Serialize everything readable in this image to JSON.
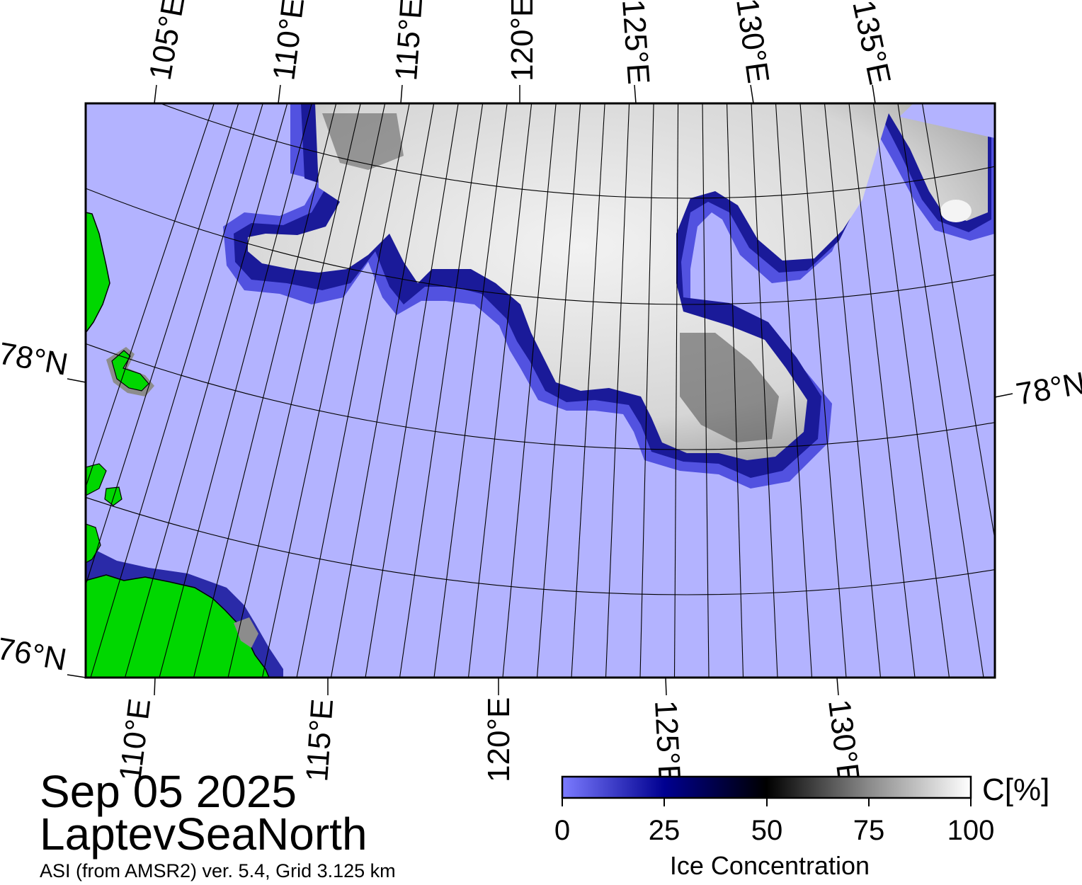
{
  "map": {
    "date": "Sep 05 2025",
    "region": "LaptevSeaNorth",
    "product": "ASI (from AMSR2) ver. 5.4,  Grid 3.125 km",
    "top_lon_labels": [
      "105°E",
      "110°E",
      "115°E",
      "120°E",
      "125°E",
      "130°E",
      "135°E"
    ],
    "bottom_lon_labels": [
      "110°E",
      "115°E",
      "120°E",
      "125°E",
      "130°E"
    ],
    "lat_labels": [
      "78°N",
      "76°N"
    ],
    "right_lat_labels": [
      "78°N"
    ]
  },
  "colorbar": {
    "unit_label": "C[%]",
    "title": "Ice Concentration",
    "ticks": [
      "0",
      "25",
      "50",
      "75",
      "100"
    ],
    "stops": [
      {
        "offset": 0,
        "color": "#7b7bff"
      },
      {
        "offset": 25,
        "color": "#000090"
      },
      {
        "offset": 50,
        "color": "#000000"
      },
      {
        "offset": 75,
        "color": "#8a8a8a"
      },
      {
        "offset": 100,
        "color": "#ffffff"
      }
    ]
  },
  "colors": {
    "open_water": "#b3b3ff",
    "land": "#00d700",
    "land_fringe": "#8c8c8c",
    "ice_edge": "#1a1a99",
    "pack_ice": "#e2e2e2"
  }
}
